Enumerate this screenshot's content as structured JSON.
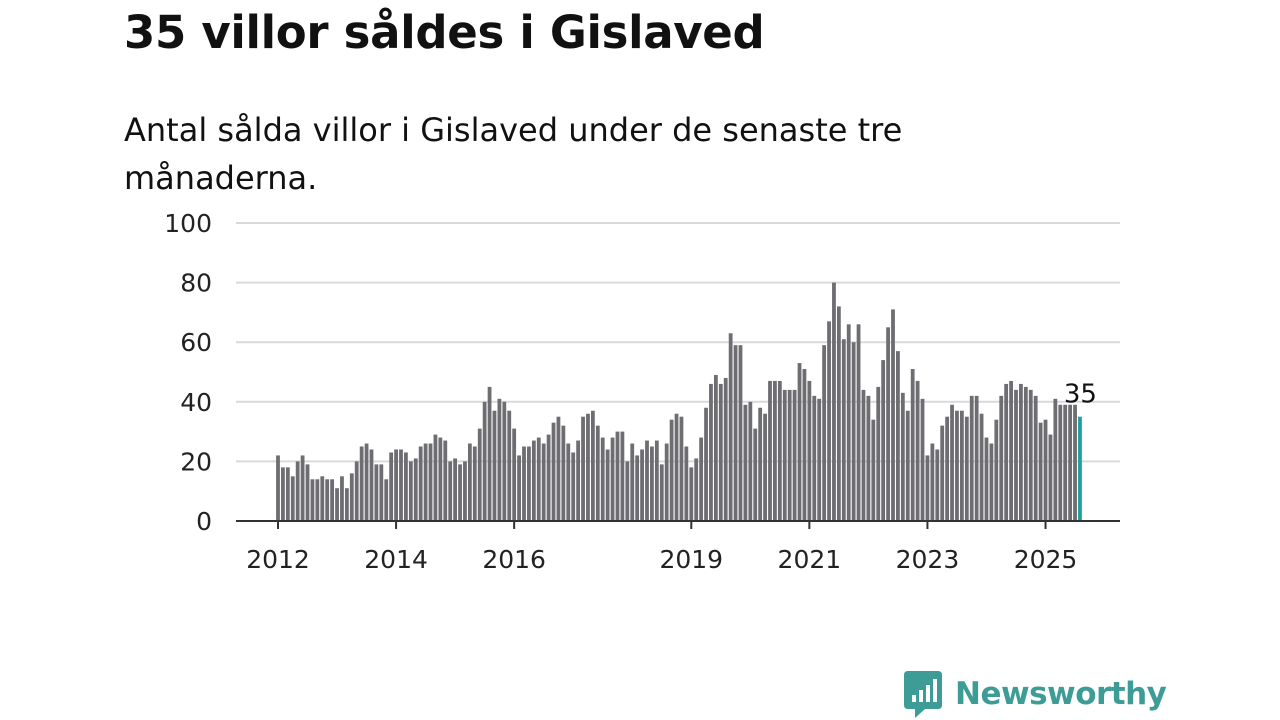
{
  "title": "35 villor såldes i Gislaved",
  "subtitle": "Antal sålda villor i Gislaved under de senaste tre månaderna.",
  "brand": {
    "name": "Newsworthy",
    "icon": "newsworthy-bar-chart-logo-icon",
    "color": "#3d9c95"
  },
  "chart_data": {
    "type": "bar",
    "title": "35 villor såldes i Gislaved",
    "subtitle": "Antal sålda villor i Gislaved under de senaste tre månaderna.",
    "xlabel": "",
    "ylabel": "",
    "ylim": [
      0,
      100
    ],
    "yticks": [
      0,
      20,
      40,
      60,
      80,
      100
    ],
    "grid": true,
    "x_ticks": [
      {
        "label": "2012",
        "date": "2012-01"
      },
      {
        "label": "2014",
        "date": "2014-01"
      },
      {
        "label": "2016",
        "date": "2016-01"
      },
      {
        "label": "2019",
        "date": "2019-01"
      },
      {
        "label": "2021",
        "date": "2021-01"
      },
      {
        "label": "2023",
        "date": "2023-01"
      },
      {
        "label": "2025",
        "date": "2025-01"
      }
    ],
    "bar_color": "#6e6d72",
    "highlight_color": "#1f9f9e",
    "last_value_label": "35",
    "series": [
      {
        "start": "2012-01",
        "values": [
          22,
          18,
          18,
          15,
          20,
          22,
          19,
          14,
          14,
          15,
          14,
          14,
          11,
          15,
          11,
          16,
          20,
          25,
          26,
          24,
          19,
          19,
          14,
          23,
          24,
          24,
          23,
          20,
          21,
          25,
          26,
          26,
          29,
          28,
          27,
          20,
          21,
          19,
          20,
          26,
          25,
          31,
          40,
          45,
          37,
          41,
          40,
          37,
          31,
          22,
          25,
          25,
          27,
          28,
          26,
          29,
          33,
          35,
          32,
          26,
          23,
          27,
          35,
          36,
          37,
          32,
          28,
          24,
          28,
          30,
          30,
          20,
          26,
          22,
          24,
          27,
          25,
          27,
          19,
          26,
          34,
          36,
          35,
          25,
          18,
          21,
          28,
          38,
          46,
          49,
          46,
          48,
          63,
          59,
          59,
          39,
          40,
          31,
          38,
          36,
          47,
          47,
          47,
          44,
          44,
          44,
          53,
          51,
          47,
          42,
          41,
          59,
          67,
          80,
          72,
          61,
          66,
          60,
          66,
          44,
          42,
          34,
          45,
          54,
          65,
          71,
          57,
          43,
          37,
          51,
          47,
          41,
          22,
          26,
          24,
          32,
          35,
          39,
          37,
          37,
          35,
          42,
          42,
          36,
          28,
          26,
          34,
          42,
          46,
          47,
          44,
          46,
          45,
          44,
          42,
          33,
          34,
          29,
          41,
          39,
          39,
          39,
          39,
          35
        ]
      }
    ]
  }
}
